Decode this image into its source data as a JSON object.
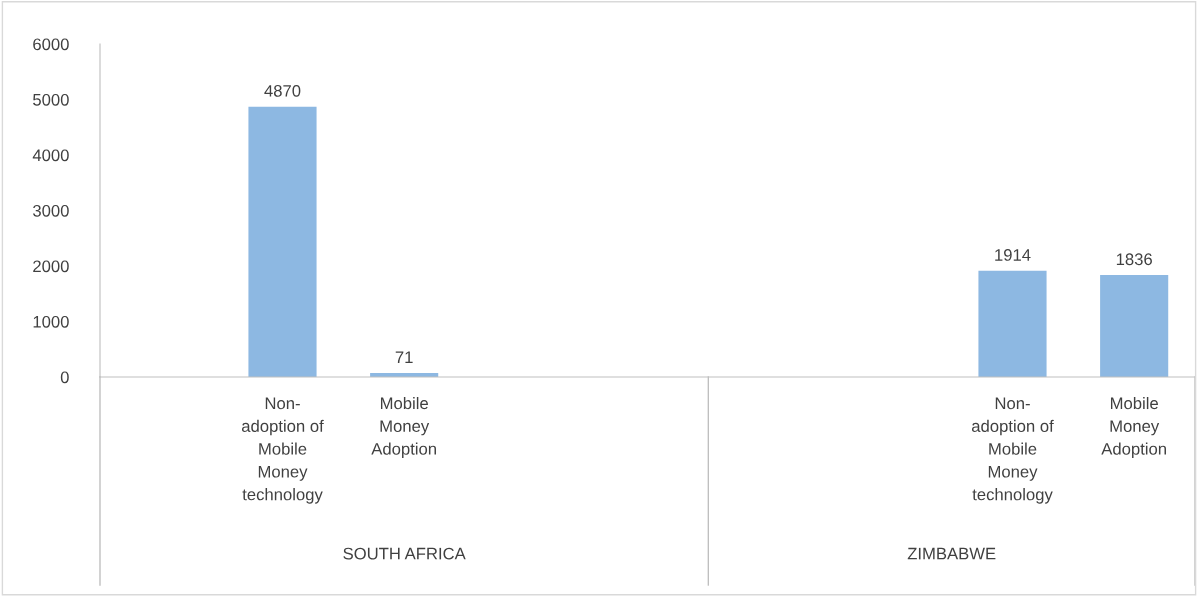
{
  "chart_data": {
    "type": "bar",
    "categories": [
      null,
      "Non-\nadoption of\nMobile\nMoney\ntechnology",
      "Mobile\nMoney\nAdoption",
      null,
      null,
      null,
      null,
      "Non-\nadoption of\nMobile\nMoney\ntechnology",
      "Mobile\nMoney\nAdoption"
    ],
    "values": [
      null,
      4870,
      71,
      null,
      null,
      null,
      null,
      1914,
      1836
    ],
    "color": "#8db8e2",
    "ylim": [
      0,
      6000
    ],
    "yticks": [
      0,
      1000,
      2000,
      3000,
      4000,
      5000,
      6000
    ],
    "grid": false,
    "data_labels": true,
    "annotations": [
      "SOUTH AFRICA",
      "ZIMBABWE"
    ]
  }
}
